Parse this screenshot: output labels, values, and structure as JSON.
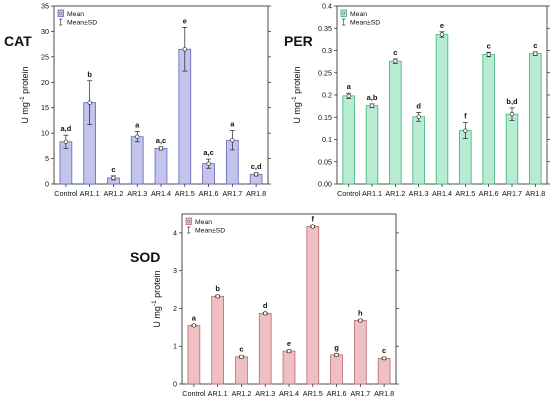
{
  "chart_data": [
    {
      "type": "bar",
      "panel_label": "CAT",
      "ylabel_base": "U mg",
      "ylabel_exp": "-1",
      "ylabel_rest": " protein",
      "categories": [
        "Control",
        "AR1.1",
        "AR1.2",
        "AR1.3",
        "AR1.4",
        "AR1.5",
        "AR1.6",
        "AR1.7",
        "AR1.8"
      ],
      "series": [
        {
          "name": "Mean",
          "values": [
            8.3,
            16.0,
            1.2,
            9.3,
            7.0,
            26.5,
            4.0,
            8.6,
            1.9
          ]
        }
      ],
      "sd": [
        1.3,
        4.3,
        0.4,
        1.0,
        0.3,
        4.3,
        0.9,
        1.9,
        0.3
      ],
      "letters": [
        "a,d",
        "b",
        "c",
        "a",
        "a,c",
        "e",
        "a,c",
        "a",
        "c,d"
      ],
      "ylim": [
        0,
        35
      ],
      "yticks": [
        "0",
        "5",
        "10",
        "15",
        "20",
        "25",
        "30",
        "35"
      ],
      "legend": {
        "position": "top-left",
        "mean_label": "Mean",
        "sd_label": "Mean±SD"
      },
      "colors": {
        "fill": "#c3c4ed",
        "stroke": "#6466b4"
      }
    },
    {
      "type": "bar",
      "panel_label": "PER",
      "ylabel_base": "U mg",
      "ylabel_exp": "-1",
      "ylabel_rest": " protein",
      "categories": [
        "Control",
        "AR1.1",
        "AR1.2",
        "AR1.3",
        "AR1.4",
        "AR1.5",
        "AR1.6",
        "AR1.7",
        "AR1.8"
      ],
      "series": [
        {
          "name": "Mean",
          "values": [
            0.198,
            0.176,
            0.276,
            0.151,
            0.336,
            0.12,
            0.291,
            0.157,
            0.293
          ]
        }
      ],
      "sd": [
        0.006,
        0.004,
        0.005,
        0.01,
        0.006,
        0.018,
        0.005,
        0.014,
        0.004
      ],
      "letters": [
        "a",
        "a,b",
        "c",
        "d",
        "e",
        "f",
        "c",
        "b,d",
        "c"
      ],
      "ylim": [
        0,
        0.4
      ],
      "yticks": [
        "0.00",
        "0.05",
        "0.1",
        "0.15",
        "0.2",
        "0.25",
        "0.3",
        "0.35",
        "0.4"
      ],
      "legend": {
        "position": "top-left",
        "mean_label": "Mean",
        "sd_label": "Mean±SD"
      },
      "colors": {
        "fill": "#b7ecd2",
        "stroke": "#3db07e"
      }
    },
    {
      "type": "bar",
      "panel_label": "SOD",
      "ylabel_base": "U mg",
      "ylabel_exp": "-1",
      "ylabel_rest": " protein",
      "categories": [
        "Control",
        "AR1.1",
        "AR1.2",
        "AR1.3",
        "AR1.4",
        "AR1.5",
        "AR1.6",
        "AR1.7",
        "AR1.8"
      ],
      "series": [
        {
          "name": "Mean",
          "values": [
            1.55,
            2.32,
            0.72,
            1.87,
            0.87,
            4.17,
            0.77,
            1.68,
            0.68
          ]
        }
      ],
      "sd": [
        0.03,
        0.03,
        0.03,
        0.03,
        0.03,
        0.03,
        0.03,
        0.03,
        0.03
      ],
      "letters": [
        "a",
        "b",
        "c",
        "d",
        "e",
        "f",
        "g",
        "h",
        "c"
      ],
      "ylim": [
        0,
        4.5
      ],
      "yticks": [
        "0",
        "1",
        "2",
        "3",
        "4"
      ],
      "legend": {
        "position": "top-left",
        "mean_label": "Mean",
        "sd_label": "Mean±SD"
      },
      "colors": {
        "fill": "#eec0c2",
        "stroke": "#b86a70"
      }
    }
  ]
}
